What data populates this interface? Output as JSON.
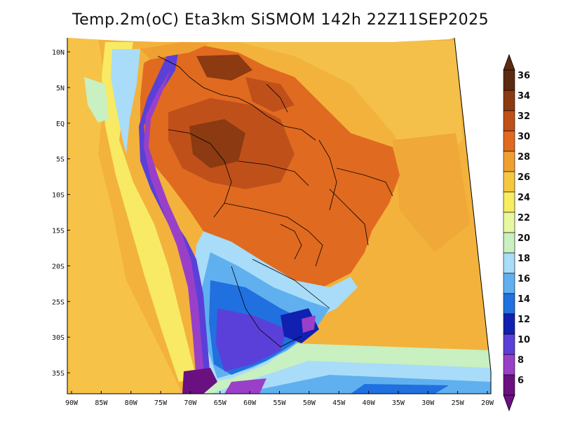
{
  "title": "Temp.2m(oC) Eta3km SiSMOM 142h 22Z11SEP2025",
  "lat_labels": [
    "10N",
    "5N",
    "EQ",
    "5S",
    "10S",
    "15S",
    "20S",
    "25S",
    "30S",
    "35S"
  ],
  "lon_labels": [
    "90W",
    "85W",
    "80W",
    "75W",
    "70W",
    "65W",
    "60W",
    "55W",
    "50W",
    "45W",
    "40W",
    "35W",
    "30W",
    "25W",
    "20W"
  ],
  "colorbar": {
    "labels": [
      "36",
      "34",
      "32",
      "30",
      "28",
      "26",
      "24",
      "22",
      "20",
      "18",
      "16",
      "14",
      "12",
      "10",
      "8",
      "6"
    ],
    "colors": [
      "#5c2a10",
      "#8b3a12",
      "#c0501a",
      "#e06a20",
      "#f0a030",
      "#f5c840",
      "#f8ec60",
      "#e8f8a0",
      "#c8f0c0",
      "#a8dcf8",
      "#60b0f0",
      "#2070e0",
      "#1020b0",
      "#5a40d8",
      "#9a40c8",
      "#6a1080"
    ]
  }
}
